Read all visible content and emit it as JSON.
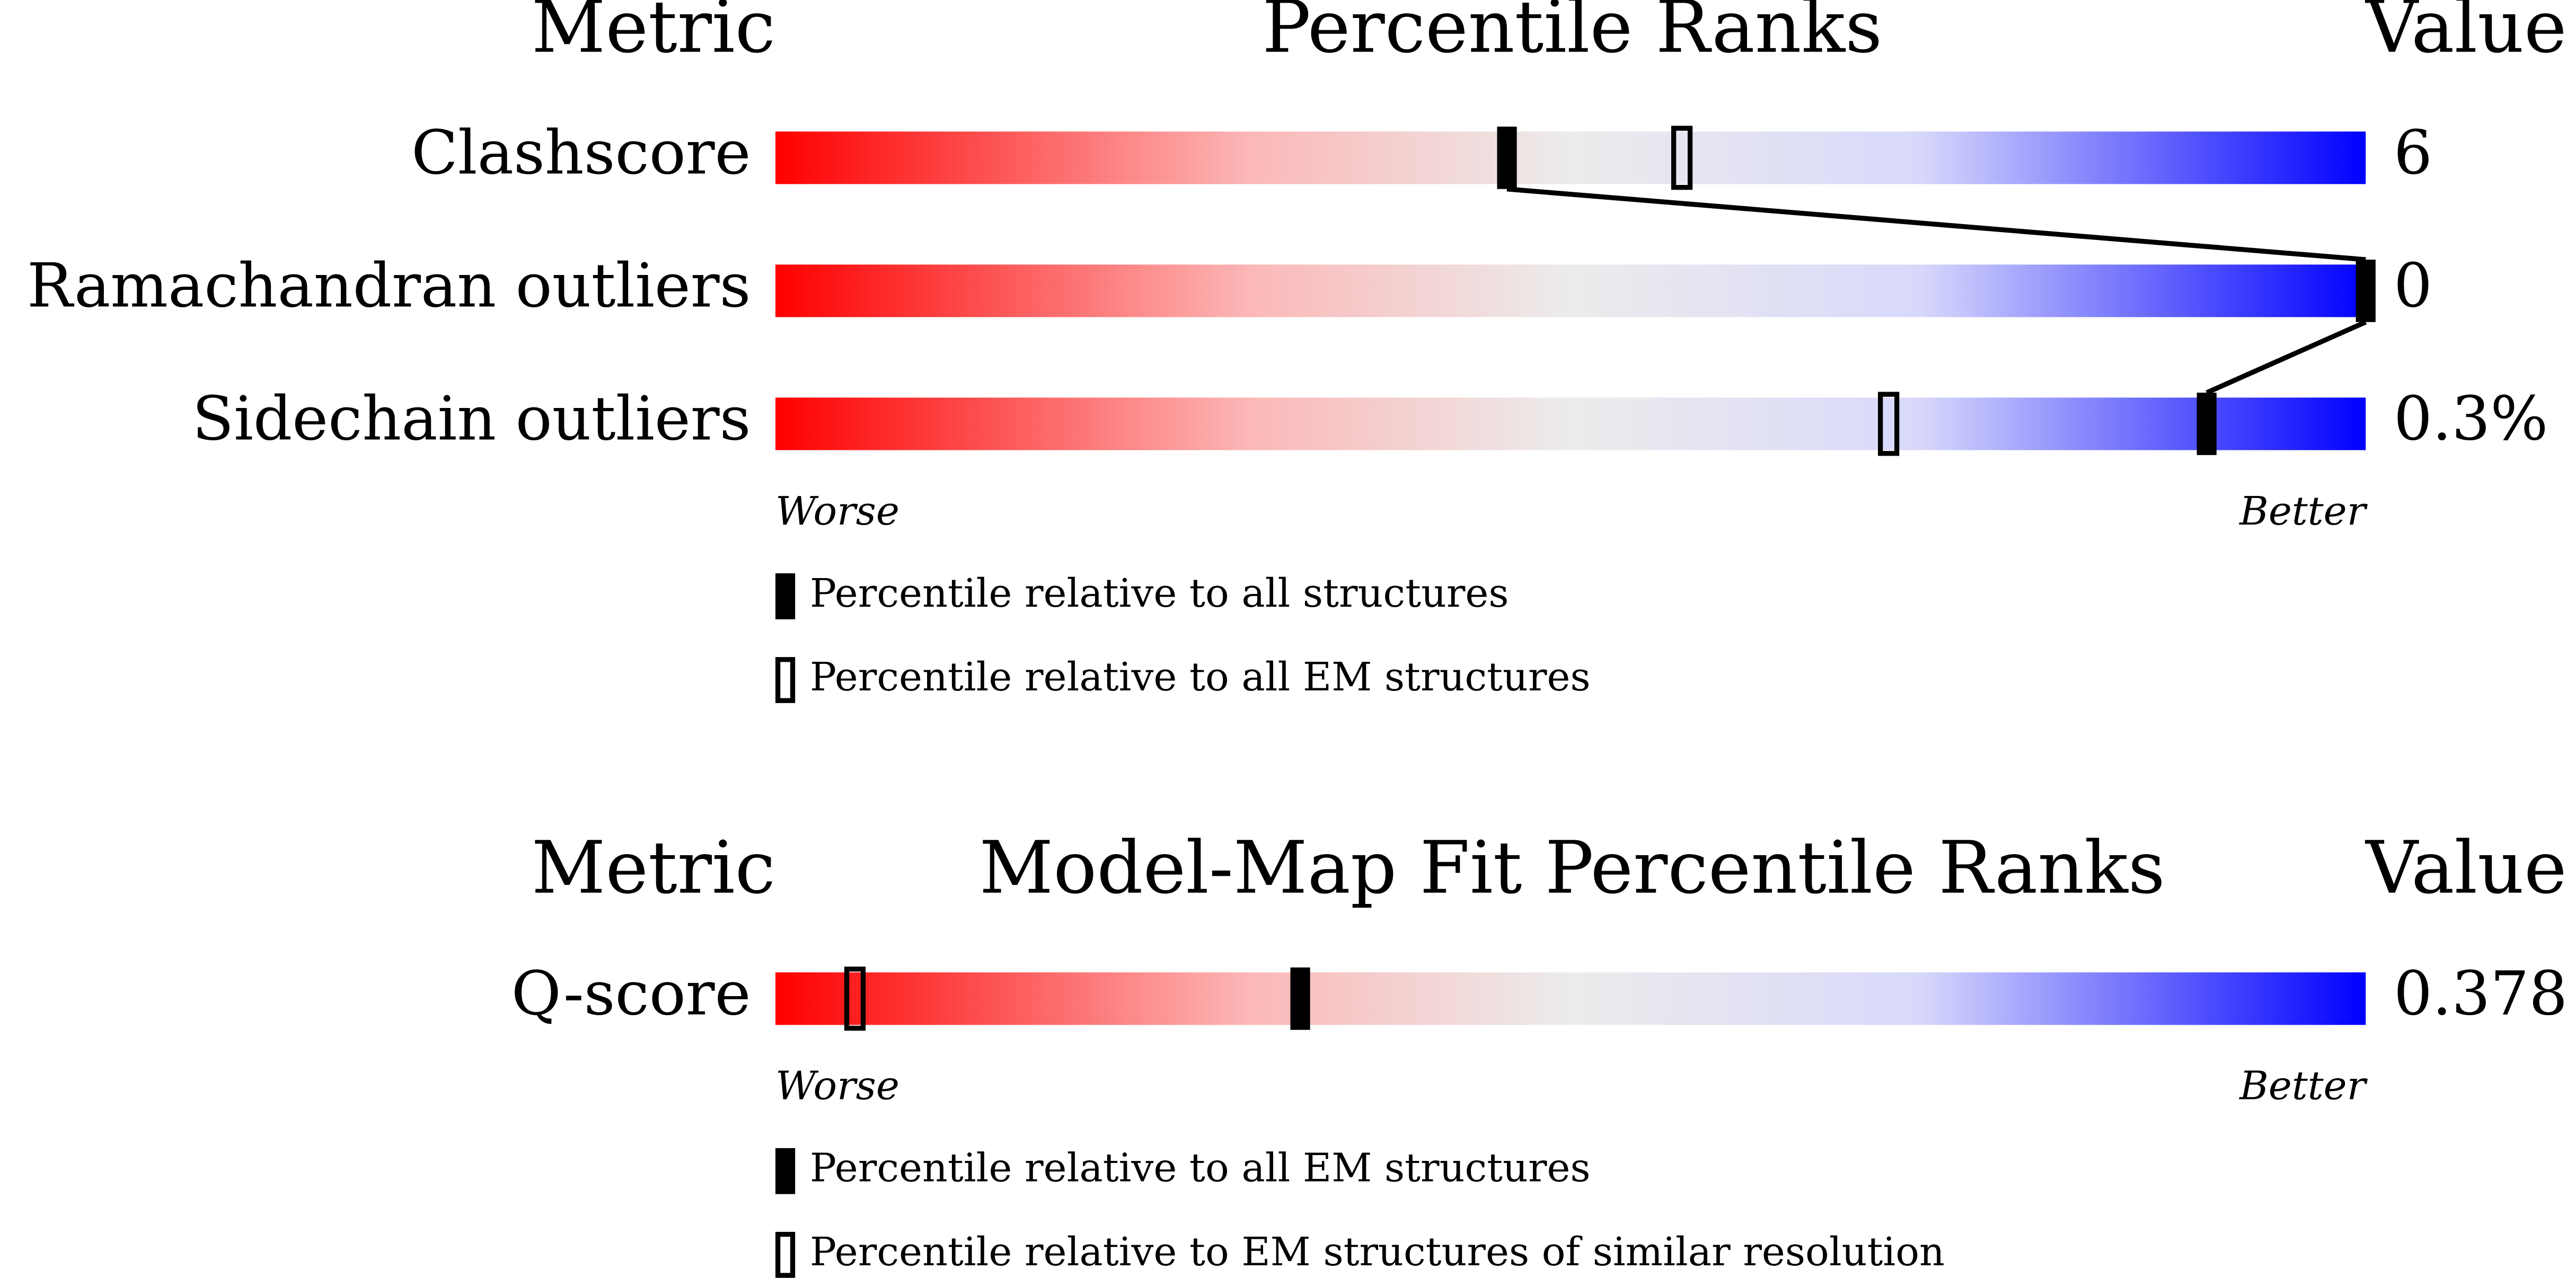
{
  "panels": [
    {
      "headers": {
        "metric": "Metric",
        "title": "Percentile Ranks",
        "value": "Value"
      },
      "rows": [
        {
          "label": "Clashscore",
          "value": "6",
          "filled": 46,
          "open": 57
        },
        {
          "label": "Ramachandran outliers",
          "value": "0",
          "filled": 100
        },
        {
          "label": "Sidechain outliers",
          "value": "0.3%",
          "filled": 90,
          "open": 70
        }
      ],
      "worse": "Worse",
      "better": "Better",
      "legend": [
        "Percentile relative to all structures",
        "Percentile relative to all EM structures"
      ]
    },
    {
      "headers": {
        "metric": "Metric",
        "title": "Model-Map Fit Percentile Ranks",
        "value": "Value"
      },
      "rows": [
        {
          "label": "Q-score",
          "value": "0.378",
          "filled": 33,
          "open": 5
        }
      ],
      "worse": "Worse",
      "better": "Better",
      "legend": [
        "Percentile relative to all EM structures",
        "Percentile relative to EM structures of similar resolution"
      ]
    }
  ]
}
